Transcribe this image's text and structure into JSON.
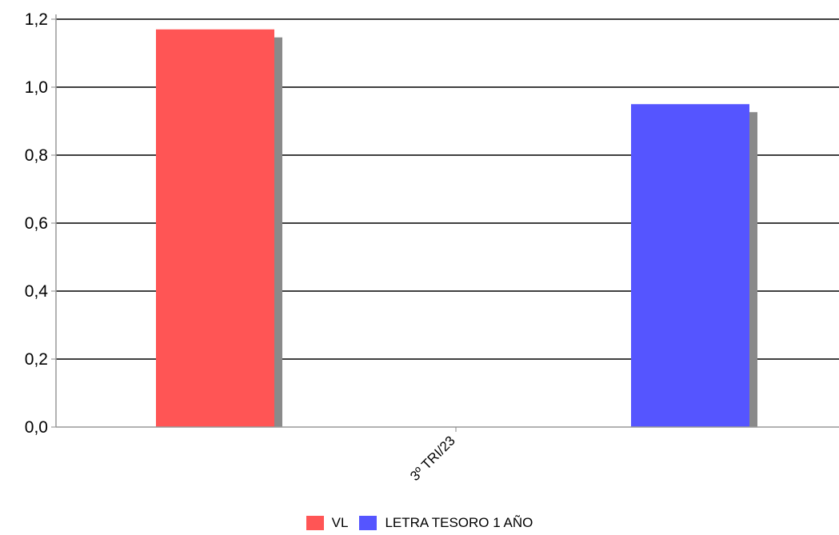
{
  "chart_data": {
    "type": "bar",
    "categories": [
      "3º TRI/23"
    ],
    "series": [
      {
        "name": "VL",
        "values": [
          1.17
        ],
        "color": "#ff5555"
      },
      {
        "name": "LETRA TESORO 1 AÑO",
        "values": [
          0.95
        ],
        "color": "#5555ff"
      }
    ],
    "ylim": [
      0,
      1.2
    ],
    "yticks": [
      "0,0",
      "0,2",
      "0,4",
      "0,6",
      "0,8",
      "1,0",
      "1,2"
    ],
    "grid": true,
    "legend_position": "bottom",
    "title": "",
    "xlabel": "",
    "ylabel": ""
  }
}
